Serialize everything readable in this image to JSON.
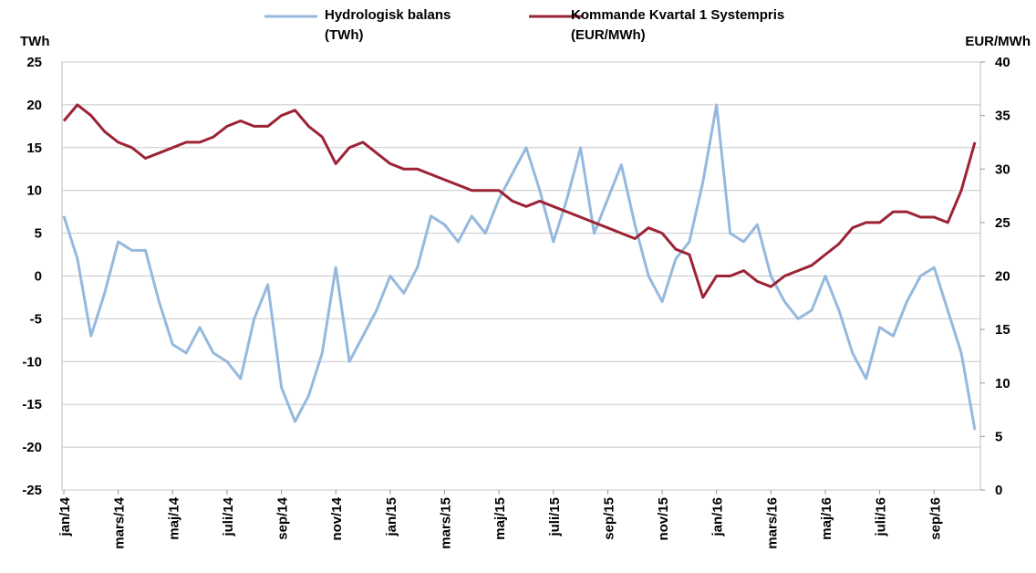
{
  "chart_data": {
    "type": "line",
    "y_label": "TWh",
    "y2_label": "EUR/MWh",
    "categories": [
      "jan/14",
      null,
      null,
      null,
      "mars/14",
      null,
      null,
      null,
      "maj/14",
      null,
      null,
      null,
      "juli/14",
      null,
      null,
      null,
      "sep/14",
      null,
      null,
      null,
      "nov/14",
      null,
      null,
      null,
      "jan/15",
      null,
      null,
      null,
      "mars/15",
      null,
      null,
      null,
      "maj/15",
      null,
      null,
      null,
      "juli/15",
      null,
      null,
      null,
      "sep/15",
      null,
      null,
      null,
      "nov/15",
      null,
      null,
      null,
      "jan/16",
      null,
      null,
      null,
      "mars/16",
      null,
      null,
      null,
      "maj/16",
      null,
      null,
      null,
      "juli/16",
      null,
      null,
      null,
      "sep/16",
      null,
      null,
      null
    ],
    "series": [
      {
        "name": "Hydrologisk balans (TWh)",
        "color": "#95b9de",
        "axis": "y",
        "values": [
          7,
          2,
          -7,
          -2,
          4,
          3,
          3,
          -3,
          -8,
          -9,
          -6,
          -9,
          -10,
          -12,
          -5,
          -1,
          -13,
          -17,
          -14,
          -9,
          1,
          -10,
          -7,
          -4,
          0,
          -2,
          1,
          7,
          6,
          4,
          7,
          5,
          9,
          12,
          15,
          10,
          4,
          9,
          15,
          5,
          9,
          13,
          6,
          0,
          -3,
          2,
          4,
          11,
          20,
          5,
          4,
          6,
          0,
          -3,
          -5,
          -4,
          0,
          -4,
          -9,
          -12,
          -6,
          -7,
          -3,
          0,
          1,
          -4,
          -9,
          -18
        ]
      },
      {
        "name": "Kommande Kvartal 1 Systempris (EUR/MWh)",
        "color": "#9b2335",
        "axis": "y2",
        "values": [
          34.5,
          36,
          35,
          33.5,
          32.5,
          32,
          31,
          31.5,
          32,
          32.5,
          32.5,
          33,
          34,
          34.5,
          34,
          34,
          35,
          35.5,
          34,
          33,
          30.5,
          32,
          32.5,
          31.5,
          30.5,
          30,
          30,
          29.5,
          29,
          28.5,
          28,
          28,
          28,
          27,
          26.5,
          27,
          26.5,
          26,
          25.5,
          25,
          24.5,
          24,
          23.5,
          24.5,
          24,
          22.5,
          22,
          18,
          20,
          20,
          20.5,
          19.5,
          19,
          20,
          20.5,
          21,
          22,
          23,
          24.5,
          25,
          25,
          26,
          26,
          25.5,
          25.5,
          25,
          28,
          32.5
        ]
      }
    ],
    "ylim": [
      -25,
      25
    ],
    "yticks": [
      -25,
      -20,
      -15,
      -10,
      -5,
      0,
      5,
      10,
      15,
      20,
      25
    ],
    "y2lim": [
      0,
      40
    ],
    "y2ticks": [
      0,
      5,
      10,
      15,
      20,
      25,
      30,
      35,
      40
    ],
    "grid": true,
    "legend": "top"
  }
}
